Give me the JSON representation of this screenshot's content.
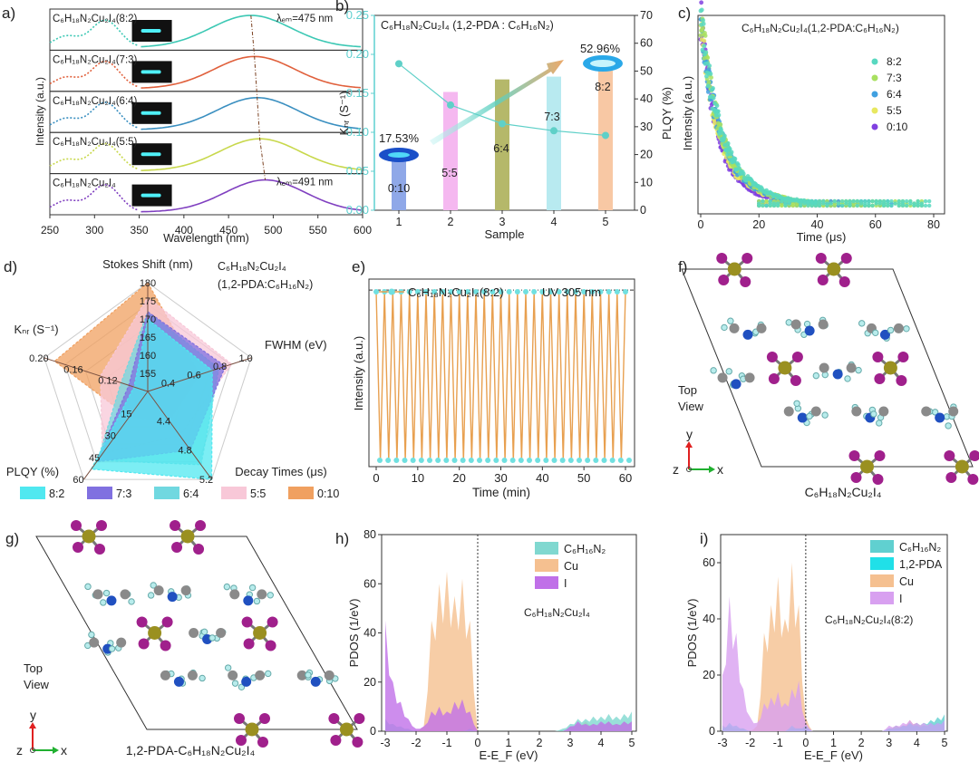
{
  "panel_labels": [
    "a)",
    "b)",
    "c)",
    "d)",
    "e)",
    "f)",
    "g)",
    "h)",
    "i)"
  ],
  "chart_data": [
    {
      "type": "line",
      "xlabel": "Wavelength (nm)",
      "ylabel": "Intensity (a.u.)",
      "xlim": [
        250,
        600
      ],
      "xticks": [
        250,
        300,
        350,
        400,
        450,
        500,
        550,
        600
      ],
      "series": [
        {
          "name": "C₆H₁₈N₂Cu₂I₄(8:2)",
          "emission_peak_nm": 475,
          "excitation_peak_nm": 310,
          "color": "#3cc8b4"
        },
        {
          "name": "C₆H₁₈N₂Cu₂I₄(7:3)",
          "emission_peak_nm": 479,
          "excitation_peak_nm": 310,
          "color": "#e0603c"
        },
        {
          "name": "C₆H₁₈N₂Cu₂I₄(6:4)",
          "emission_peak_nm": 482,
          "excitation_peak_nm": 310,
          "color": "#3a8fc0"
        },
        {
          "name": "C₆H₁₈N₂Cu₂I₄(5:5)",
          "emission_peak_nm": 485,
          "excitation_peak_nm": 310,
          "color": "#c8d84c"
        },
        {
          "name": "C₆H₁₈N₂Cu₂I₄",
          "emission_peak_nm": 491,
          "excitation_peak_nm": 310,
          "color": "#8040c0"
        }
      ],
      "annotations": [
        "λₑₘ=475 nm",
        "λₑₘ=491 nm"
      ]
    },
    {
      "type": "bar",
      "title": "C₆H₁₈N₂Cu₂I₄ (1,2-PDA : C₆H₁₆N₂)",
      "xlabel": "Sample",
      "ylabel": "Kₙᵣ (S⁻¹)",
      "ylabel_right": "PLQY (%)",
      "categories": [
        1,
        2,
        3,
        4,
        5
      ],
      "ratio_labels": [
        "0:10",
        "5:5",
        "6:4",
        "7:3",
        "8:2"
      ],
      "ylim": [
        0,
        0.25
      ],
      "ylim_right": [
        0,
        70
      ],
      "yticks": [
        "0.00",
        "0.05",
        "0.10",
        "0.15",
        "0.20",
        "0.25"
      ],
      "yticks_right": [
        0,
        10,
        20,
        30,
        40,
        50,
        60,
        70
      ],
      "plqy_values": [
        17.53,
        42.5,
        47.0,
        48.0,
        52.96
      ],
      "knr_values": [
        0.188,
        0.135,
        0.111,
        0.102,
        0.096
      ],
      "value_labels": [
        "17.53%",
        "52.96%"
      ],
      "bar_colors": [
        "#8fa8e8",
        "#f5b8f0",
        "#b5b86a",
        "#b8eaf0",
        "#f8c8a4"
      ],
      "line_color": "#5fd0c8"
    },
    {
      "type": "scatter",
      "title": "C₆H₁₈N₂Cu₂I₄(1,2-PDA:C₆H₁₆N₂)",
      "xlabel": "Time (μs)",
      "ylabel": "Intensity (a.u.)",
      "xlim": [
        0,
        80
      ],
      "xticks": [
        0,
        20,
        40,
        60,
        80
      ],
      "x": [
        0,
        2,
        4,
        6,
        8,
        10,
        12,
        15,
        18,
        21,
        25,
        30,
        35,
        40
      ],
      "series": [
        {
          "name": "8:2",
          "color": "#58d8c0",
          "tail_end_us": 80,
          "y": [
            1,
            0.76,
            0.58,
            0.45,
            0.35,
            0.28,
            0.22,
            0.16,
            0.12,
            0.09,
            0.06,
            0.04,
            0.03,
            0.02
          ]
        },
        {
          "name": "7:3",
          "color": "#a8e060",
          "tail_end_us": 77,
          "y": [
            1,
            0.75,
            0.57,
            0.44,
            0.34,
            0.27,
            0.21,
            0.15,
            0.11,
            0.08,
            0.06,
            0.04,
            0.03,
            0.02
          ]
        },
        {
          "name": "6:4",
          "color": "#40a0e0",
          "tail_end_us": 66,
          "y": [
            1,
            0.74,
            0.56,
            0.43,
            0.33,
            0.26,
            0.2,
            0.14,
            0.1,
            0.08,
            0.05,
            0.035,
            0.025,
            0.015
          ]
        },
        {
          "name": "5:5",
          "color": "#e8e860",
          "tail_end_us": 60,
          "y": [
            1,
            0.73,
            0.54,
            0.41,
            0.31,
            0.24,
            0.18,
            0.13,
            0.09,
            0.07,
            0.05,
            0.03,
            0.02,
            0.01
          ]
        },
        {
          "name": "0:10",
          "color": "#8040e0",
          "tail_end_us": 45,
          "y": [
            1,
            0.72,
            0.52,
            0.38,
            0.28,
            0.21,
            0.16,
            0.11,
            0.08,
            0.06,
            0.04,
            0.03,
            0.02,
            0.01
          ]
        }
      ]
    },
    {
      "type": "radar",
      "title": [
        "C₆H₁₈N₂Cu₂I₄",
        "(1,2-PDA:C₆H₁₆N₂)"
      ],
      "axes": [
        {
          "label": "Stokes Shift (nm)",
          "range": [
            150,
            180
          ],
          "ticks": [
            155,
            160,
            165,
            170,
            175,
            180
          ]
        },
        {
          "label": "FWHM (eV)",
          "range": [
            0.2,
            1.0
          ],
          "ticks": [
            0.4,
            0.6,
            0.8,
            "1.0"
          ]
        },
        {
          "label": "Decay Times (μs)",
          "range": [
            4.0,
            5.2
          ],
          "ticks": [
            4.4,
            4.8,
            5.2
          ]
        },
        {
          "label": "PLQY (%)",
          "range": [
            0,
            60
          ],
          "ticks": [
            15,
            30,
            45,
            60
          ]
        },
        {
          "label": "Kₙᵣ (S⁻¹)",
          "range": [
            0.08,
            0.2
          ],
          "ticks": [
            0.12,
            0.16,
            "0.20"
          ]
        }
      ],
      "series": [
        {
          "name": "0:10",
          "color": "#f0a060",
          "values": [
            180,
            0.6,
            4.4,
            17.53,
            0.188
          ]
        },
        {
          "name": "5:5",
          "color": "#f8c8d8",
          "values": [
            176,
            0.85,
            4.6,
            42.5,
            0.135
          ]
        },
        {
          "name": "6:4",
          "color": "#70d8e0",
          "values": [
            172,
            0.75,
            5.0,
            47,
            0.111
          ]
        },
        {
          "name": "7:3",
          "color": "#8070e0",
          "values": [
            172,
            0.8,
            4.8,
            48,
            0.102
          ]
        },
        {
          "name": "8:2",
          "color": "#50e8f0",
          "values": [
            170,
            0.7,
            5.2,
            52.96,
            0.096
          ]
        }
      ],
      "legend_order": [
        4,
        3,
        2,
        1,
        0
      ],
      "legend": "bottom"
    },
    {
      "type": "line",
      "legend_label": "C₆H₁₈N₂Cu₂I₄(8:2)",
      "annotation": "UV 305 nm",
      "xlabel": "Time (min)",
      "ylabel": "Intensity (a.u.)",
      "xlim": [
        0,
        60
      ],
      "xticks": [
        0,
        10,
        20,
        30,
        40,
        50,
        60
      ],
      "peak_times_min": [
        0,
        2,
        4,
        6,
        8,
        10,
        12,
        14,
        16,
        18,
        20,
        22,
        24,
        26,
        28,
        30,
        32,
        34,
        36,
        38,
        40,
        42,
        44,
        46,
        48,
        50,
        52,
        54,
        56,
        58,
        60
      ],
      "high": 1.0,
      "low": 0.0,
      "line_color": "#e8a050",
      "marker_color": "#70e0e0"
    },
    {
      "type": "area",
      "annotation": "C₆H₁₈N₂Cu₂I₄",
      "xlabel": "E-E_F (eV)",
      "ylabel": "PDOS (1/eV)",
      "xlim": [
        -3,
        5
      ],
      "ylim": [
        0,
        80
      ],
      "xticks": [
        -3,
        -2,
        -1,
        0,
        1,
        2,
        3,
        4,
        5
      ],
      "yticks": [
        0,
        20,
        40,
        60,
        80
      ],
      "x": [
        -3,
        -2.75,
        -2.5,
        -2.25,
        -2,
        -1.75,
        -1.5,
        -1.25,
        -1,
        -0.75,
        -0.5,
        -0.25,
        0,
        0.25,
        0.5,
        0.75,
        1,
        1.25,
        1.5,
        1.75,
        2,
        2.25,
        2.5,
        2.75,
        3,
        3.25,
        3.5,
        3.75,
        4,
        4.25,
        4.5,
        4.75,
        5
      ],
      "series": [
        {
          "name": "C₆H₁₆N₂",
          "color": "#80d8d0",
          "y": [
            5,
            3,
            2,
            1,
            0,
            0,
            0,
            0,
            0,
            0,
            0,
            1,
            0,
            0,
            0,
            0,
            0,
            0,
            0,
            0,
            0,
            0,
            0,
            1,
            3,
            5,
            5,
            6,
            6,
            7,
            6,
            7,
            8
          ]
        },
        {
          "name": "Cu",
          "color": "#f5c090",
          "y": [
            0,
            0,
            0,
            0,
            0,
            2,
            45,
            60,
            65,
            55,
            62,
            45,
            0,
            0,
            0,
            0,
            0,
            0,
            0,
            0,
            0,
            0,
            0,
            0,
            2,
            3,
            4,
            3,
            3,
            4,
            3,
            4,
            4
          ]
        },
        {
          "name": "I",
          "color": "#c070e8",
          "y": [
            45,
            20,
            12,
            5,
            1,
            2,
            8,
            10,
            8,
            12,
            13,
            8,
            0,
            0,
            0,
            0,
            0,
            0,
            0,
            0,
            0,
            0,
            0,
            0,
            2,
            4,
            3,
            3,
            4,
            4,
            3,
            4,
            4
          ]
        }
      ]
    },
    {
      "type": "area",
      "annotation": "C₆H₁₈N₂Cu₂I₄(8:2)",
      "xlabel": "E-E_F (eV)",
      "ylabel": "PDOS (1/eV)",
      "xlim": [
        -3,
        5
      ],
      "ylim": [
        0,
        70
      ],
      "xticks": [
        -3,
        -2,
        -1,
        0,
        1,
        2,
        3,
        4,
        5
      ],
      "yticks": [
        0,
        20,
        40,
        60
      ],
      "x": [
        -3,
        -2.75,
        -2.5,
        -2.25,
        -2,
        -1.75,
        -1.5,
        -1.25,
        -1,
        -0.75,
        -0.5,
        -0.25,
        0,
        0.25,
        0.5,
        0.75,
        1,
        1.25,
        1.5,
        1.75,
        2,
        2.25,
        2.5,
        2.75,
        3,
        3.25,
        3.5,
        3.75,
        4,
        4.25,
        4.5,
        4.75,
        5
      ],
      "series": [
        {
          "name": "C₆H₁₆N₂",
          "color": "#60d0d0",
          "y": [
            2,
            2,
            1,
            1,
            0,
            0,
            0,
            0,
            0,
            0,
            1,
            1,
            1,
            0,
            0,
            0,
            0,
            0,
            0,
            0,
            0,
            0,
            0,
            0,
            1,
            2,
            2,
            3,
            3,
            3,
            4,
            5,
            6
          ]
        },
        {
          "name": "1,2-PDA",
          "color": "#20e0e8",
          "y": [
            1,
            3,
            2,
            1,
            0,
            0,
            0,
            0,
            0,
            0,
            2,
            1,
            2,
            0,
            0,
            0,
            0,
            0,
            0,
            0,
            0,
            0,
            0,
            0,
            1,
            1,
            2,
            3,
            2,
            2,
            3,
            3,
            4
          ]
        },
        {
          "name": "Cu",
          "color": "#f5c090",
          "y": [
            0,
            0,
            0,
            0,
            0,
            2,
            35,
            45,
            55,
            40,
            60,
            45,
            5,
            0,
            0,
            0,
            0,
            0,
            0,
            0,
            0,
            0,
            0,
            0,
            1,
            2,
            2,
            4,
            3,
            2,
            3,
            3,
            3
          ]
        },
        {
          "name": "I",
          "color": "#d8a0f0",
          "y": [
            20,
            48,
            35,
            15,
            5,
            3,
            10,
            12,
            14,
            10,
            15,
            18,
            3,
            0,
            0,
            0,
            0,
            0,
            0,
            0,
            0,
            0,
            0,
            0,
            2,
            2,
            3,
            4,
            3,
            3,
            3,
            3,
            4
          ]
        }
      ]
    }
  ],
  "structures": {
    "f": {
      "view": [
        "Top",
        "View"
      ],
      "caption": "C₆H₁₈N₂Cu₂I₄",
      "axis_y": "y",
      "axis_x": "x",
      "axis_z": "z"
    },
    "g": {
      "view": [
        "Top",
        "View"
      ],
      "caption": "1,2-PDA-C₆H₁₈N₂Cu₂I₄",
      "axis_y": "y",
      "axis_x": "x",
      "axis_z": "z"
    }
  },
  "atom_colors": {
    "Cu": "#9a9020",
    "I": "#a0208c",
    "C": "#8a8a8a",
    "N": "#2050c0",
    "H": "#b8ecec"
  }
}
